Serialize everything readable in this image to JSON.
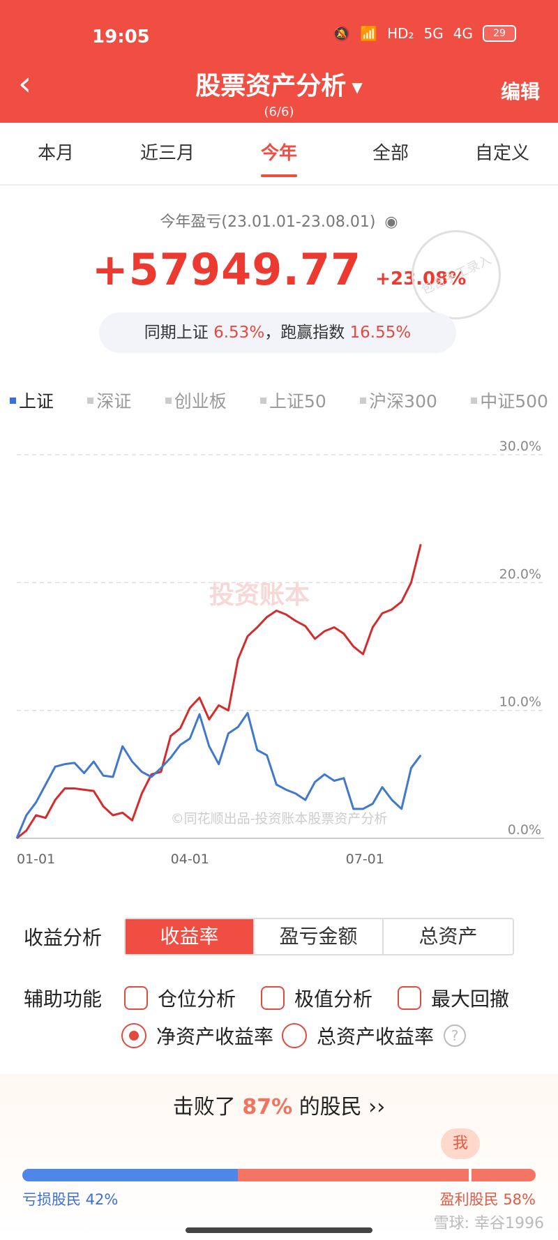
{
  "status_bar": {
    "time": "19:05",
    "icons": [
      "mute-icon",
      "wifi-icon",
      "hd-icon",
      "signal-5g-icon",
      "signal-4g-icon"
    ],
    "network_labels": [
      "HD₂",
      "5G",
      "4G"
    ],
    "battery": "29"
  },
  "header": {
    "title": "股票资产分析",
    "subtitle": "(6/6)",
    "edit_label": "编辑"
  },
  "tabs": [
    {
      "label": "本月"
    },
    {
      "label": "近三月"
    },
    {
      "label": "今年",
      "active": true
    },
    {
      "label": "全部"
    },
    {
      "label": "自定义"
    }
  ],
  "summary": {
    "label": "今年盈亏(23.01.01-23.08.01)",
    "amount": "+57949.77",
    "percent": "+23.08%",
    "stamp": "包含手工录入",
    "compare_prefix": "同期上证",
    "compare_value": "6.53%",
    "compare_mid": "，跑赢指数",
    "compare_excess": "16.55%"
  },
  "legend": [
    {
      "label": "上证",
      "active": true
    },
    {
      "label": "深证"
    },
    {
      "label": "创业板"
    },
    {
      "label": "上证50"
    },
    {
      "label": "沪深300"
    },
    {
      "label": "中证500"
    }
  ],
  "chart_data": {
    "type": "line",
    "y_ticks": [
      "30.0%",
      "20.0%",
      "10.0%",
      "0.0%"
    ],
    "x_ticks": [
      "01-01",
      "04-01",
      "07-01"
    ],
    "ylim": [
      0,
      30
    ],
    "watermark": "投资账本",
    "footer_watermark": "©同花顺出品-投资账本股票资产分析",
    "colors": {
      "portfolio": "#d42b2b",
      "index": "#3f78cc"
    },
    "series": [
      {
        "x": [
          0,
          5,
          10,
          15,
          20,
          25,
          30,
          35,
          40,
          45,
          50,
          55,
          60,
          65,
          70,
          75,
          80,
          85,
          90,
          95,
          100,
          105,
          110,
          115,
          120,
          125,
          130,
          135,
          140,
          145,
          150,
          155,
          160,
          165,
          170,
          175,
          180,
          185,
          190,
          195,
          200,
          205,
          210
        ],
        "y": [
          0,
          0.6,
          1.8,
          1.6,
          3.0,
          3.9,
          3.9,
          3.8,
          3.7,
          2.5,
          1.8,
          2.0,
          1.4,
          3.5,
          5.0,
          5.2,
          8.0,
          8.6,
          10.2,
          11.0,
          9.3,
          10.4,
          10.0,
          14.0,
          15.8,
          16.5,
          17.3,
          17.8,
          17.5,
          17.0,
          16.6,
          15.6,
          16.2,
          16.5,
          16.0,
          15.0,
          14.4,
          16.5,
          17.6,
          17.9,
          18.5,
          20.0,
          23.0
        ]
      },
      {
        "x": [
          0,
          5,
          10,
          15,
          20,
          25,
          30,
          35,
          40,
          45,
          50,
          55,
          60,
          65,
          70,
          75,
          80,
          85,
          90,
          95,
          100,
          105,
          110,
          115,
          120,
          125,
          130,
          135,
          140,
          145,
          150,
          155,
          160,
          165,
          170,
          175,
          180,
          185,
          190,
          195,
          200,
          205,
          210
        ],
        "y": [
          0,
          1.8,
          2.8,
          4.2,
          5.6,
          5.8,
          5.9,
          5.1,
          6.0,
          4.9,
          4.8,
          7.2,
          6.0,
          5.2,
          4.8,
          5.5,
          6.3,
          7.3,
          7.8,
          9.7,
          7.2,
          5.8,
          8.2,
          8.7,
          9.8,
          6.9,
          6.5,
          4.2,
          3.8,
          3.5,
          3.0,
          4.4,
          5.0,
          4.5,
          4.7,
          2.3,
          2.3,
          2.7,
          4.0,
          3.0,
          2.3,
          5.5,
          6.5
        ]
      }
    ]
  },
  "analysis": {
    "label": "收益分析",
    "options": [
      "收益率",
      "盈亏金额",
      "总资产"
    ]
  },
  "aux": {
    "label": "辅助功能",
    "checks": [
      "仓位分析",
      "极值分析",
      "最大回撤"
    ],
    "radios": [
      "净资产收益率",
      "总资产收益率"
    ]
  },
  "beat": {
    "prefix": "击败了",
    "value": "87%",
    "suffix": "的股民 ››",
    "me_label": "我",
    "loss_label": "亏损股民 42%",
    "profit_label": "盈利股民 58%",
    "loss_fraction": 0.42,
    "me_position": 0.87
  },
  "footer": {
    "watermark": "雪球: 幸谷1996"
  }
}
